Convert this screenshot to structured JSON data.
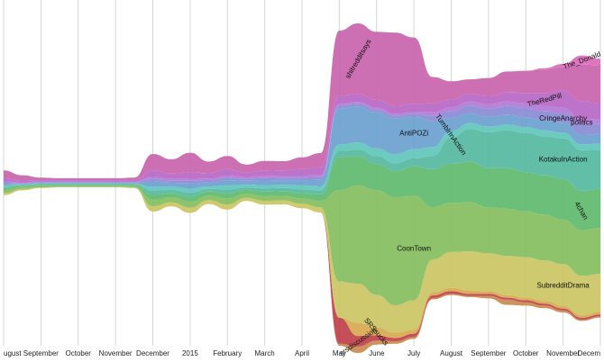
{
  "chart_data": {
    "type": "area",
    "subtype": "streamgraph",
    "title": "",
    "xlabel": "",
    "ylabel": "",
    "grid": true,
    "legend": "inline labels",
    "x_ticks": [
      "ugust",
      "September",
      "October",
      "November",
      "December",
      "2015",
      "February",
      "March",
      "April",
      "May",
      "June",
      "July",
      "August",
      "September",
      "October",
      "November",
      "Decem"
    ],
    "x": [
      "2014-08",
      "2014-08b",
      "2014-09",
      "2014-09b",
      "2014-10",
      "2014-10b",
      "2014-11",
      "2014-11b",
      "2014-12",
      "2014-12b",
      "2015-01",
      "2015-01b",
      "2015-02",
      "2015-02b",
      "2015-03",
      "2015-03b",
      "2015-04",
      "2015-04b",
      "2015-05",
      "2015-05b",
      "2015-06",
      "2015-06b",
      "2015-07",
      "2015-07b",
      "2015-08",
      "2015-08b",
      "2015-09",
      "2015-09b",
      "2015-10",
      "2015-10b",
      "2015-11",
      "2015-11b",
      "2015-12"
    ],
    "series": [
      {
        "name": "",
        "color": "#c88a4e",
        "values": [
          0,
          0,
          0,
          0,
          0,
          0,
          0,
          0,
          0,
          0,
          0,
          0,
          0,
          0,
          0,
          0,
          0,
          0,
          3,
          10,
          6,
          4,
          3,
          2,
          2,
          2,
          4,
          8,
          5,
          4,
          3,
          2,
          2
        ]
      },
      {
        "name": "srsdiscussion",
        "color": "#c0404a",
        "values": [
          0,
          0,
          0,
          0,
          0,
          0,
          0,
          0,
          0,
          0,
          0,
          0,
          0,
          0,
          0,
          0,
          0,
          0,
          40,
          16,
          8,
          5,
          5,
          4,
          4,
          3,
          3,
          3,
          3,
          3,
          3,
          3,
          3
        ]
      },
      {
        "name": "SRSsucks",
        "color": "#d7a94e",
        "values": [
          0,
          0,
          0,
          0,
          0,
          0,
          0,
          0,
          0,
          0,
          0,
          0,
          0,
          0,
          0,
          0,
          0,
          0,
          0,
          20,
          12,
          8,
          6,
          5,
          5,
          5,
          4,
          4,
          4,
          4,
          4,
          4,
          4
        ]
      },
      {
        "name": "SubredditDrama",
        "color": "#cbc464",
        "values": [
          3,
          2,
          1,
          1,
          1,
          1,
          1,
          1,
          8,
          6,
          8,
          6,
          8,
          5,
          6,
          6,
          7,
          8,
          55,
          60,
          50,
          42,
          45,
          50,
          55,
          60,
          58,
          60,
          62,
          62,
          64,
          60,
          58
        ]
      },
      {
        "name": "CoonTown",
        "color": "#86be5e",
        "values": [
          5,
          3,
          2,
          1,
          1,
          1,
          1,
          2,
          10,
          8,
          9,
          7,
          9,
          6,
          7,
          7,
          8,
          10,
          140,
          150,
          160,
          165,
          160,
          80,
          75,
          75,
          70,
          72,
          70,
          70,
          68,
          70,
          70
        ]
      },
      {
        "name": "4chan",
        "color": "#5fba6c",
        "values": [
          3,
          2,
          2,
          2,
          2,
          2,
          2,
          2,
          8,
          6,
          8,
          6,
          8,
          6,
          7,
          7,
          8,
          10,
          50,
          45,
          40,
          40,
          45,
          58,
          60,
          62,
          60,
          62,
          60,
          60,
          62,
          60,
          60
        ]
      },
      {
        "name": "KotakuInAction",
        "color": "#55b8a0",
        "values": [
          2,
          1,
          1,
          1,
          1,
          1,
          1,
          1,
          6,
          5,
          6,
          4,
          6,
          4,
          5,
          5,
          6,
          6,
          10,
          10,
          12,
          12,
          12,
          20,
          40,
          50,
          55,
          58,
          60,
          60,
          62,
          62,
          60
        ]
      },
      {
        "name": "TumblrInAction",
        "color": "#5fc6bb",
        "values": [
          2,
          1,
          1,
          1,
          1,
          1,
          1,
          1,
          6,
          5,
          6,
          4,
          6,
          4,
          5,
          5,
          6,
          6,
          10,
          11,
          12,
          14,
          14,
          14,
          10,
          9,
          9,
          9,
          9,
          9,
          9,
          9,
          9
        ]
      },
      {
        "name": "AntiPOZi",
        "color": "#6aa1cf",
        "values": [
          2,
          1,
          1,
          1,
          1,
          1,
          1,
          1,
          8,
          6,
          8,
          6,
          8,
          6,
          7,
          7,
          8,
          10,
          55,
          55,
          55,
          55,
          50,
          40,
          20,
          15,
          15,
          15,
          15,
          15,
          15,
          15,
          15
        ]
      },
      {
        "name": "CringeAnarchy",
        "color": "#8a8ad4",
        "values": [
          2,
          1,
          1,
          1,
          1,
          1,
          1,
          1,
          4,
          3,
          4,
          3,
          4,
          3,
          4,
          4,
          4,
          4,
          4,
          4,
          4,
          4,
          4,
          8,
          10,
          12,
          12,
          13,
          14,
          14,
          15,
          15,
          15
        ]
      },
      {
        "name": "politics",
        "color": "#b07ad8",
        "values": [
          2,
          1,
          1,
          1,
          1,
          1,
          1,
          1,
          3,
          3,
          3,
          3,
          3,
          3,
          3,
          3,
          3,
          3,
          3,
          3,
          3,
          3,
          3,
          5,
          6,
          6,
          7,
          7,
          7,
          8,
          8,
          8,
          8
        ]
      },
      {
        "name": "TheRedPill",
        "color": "#b667c4",
        "values": [
          5,
          3,
          2,
          2,
          2,
          2,
          2,
          2,
          10,
          8,
          10,
          8,
          10,
          7,
          8,
          8,
          10,
          12,
          12,
          12,
          12,
          12,
          12,
          14,
          12,
          12,
          12,
          14,
          16,
          20,
          26,
          28,
          24
        ]
      },
      {
        "name": "shitredditsays",
        "color": "#c963ad",
        "values": [
          12,
          8,
          4,
          3,
          3,
          3,
          3,
          4,
          25,
          22,
          30,
          18,
          20,
          12,
          15,
          14,
          18,
          22,
          100,
          108,
          104,
          112,
          102,
          40,
          28,
          22,
          28,
          32,
          34,
          36,
          36,
          56,
          58
        ]
      },
      {
        "name": "The_Donald",
        "color": "#d96ab9",
        "values": [
          0,
          0,
          0,
          0,
          0,
          0,
          0,
          0,
          0,
          0,
          0,
          0,
          0,
          0,
          0,
          0,
          0,
          0,
          0,
          0,
          0,
          0,
          0,
          0,
          0,
          0,
          0,
          0,
          0,
          2,
          5,
          14,
          10
        ]
      }
    ]
  }
}
